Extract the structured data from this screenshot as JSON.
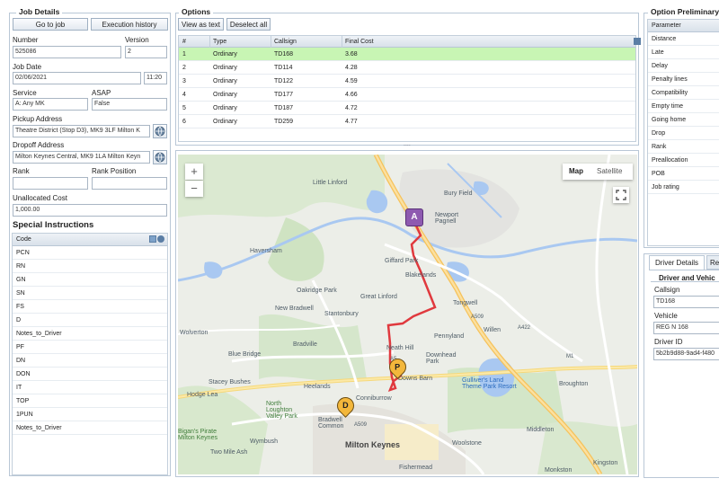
{
  "job_details": {
    "title": "Job Details",
    "go_to_job": "Go to job",
    "execution_history": "Execution history",
    "number_label": "Number",
    "number_value": "525086",
    "version_label": "Version",
    "version_value": "2",
    "job_date_label": "Job Date",
    "job_date_value": "02/06/2021",
    "job_time_value": "11:20",
    "service_label": "Service",
    "service_value": "A: Any MK",
    "asap_label": "ASAP",
    "asap_value": "False",
    "pickup_label": "Pickup Address",
    "pickup_value": "Theatre District (Stop D3), MK9 3LF Milton K",
    "dropoff_label": "Dropoff Address",
    "dropoff_value": "Milton Keynes Central, MK9 1LA Milton Keyn",
    "rank_label": "Rank",
    "rank_value": "",
    "rank_position_label": "Rank Position",
    "rank_position_value": "",
    "unallocated_label": "Unallocated Cost",
    "unallocated_value": "1,000.00",
    "special_title": "Special Instructions",
    "code_header": "Code",
    "codes": [
      "PCN",
      "RN",
      "GN",
      "SN",
      "FS",
      "D",
      "Notes_to_Driver",
      "PF",
      "DN",
      "DON",
      "IT",
      "TOP",
      "1PUN",
      "Notes_to_Driver"
    ]
  },
  "options": {
    "title": "Options",
    "view_as_text": "View as text",
    "deselect_all": "Deselect all",
    "columns": [
      "#",
      "Type",
      "Callsign",
      "Final Cost"
    ],
    "rows": [
      {
        "n": "1",
        "type": "Ordinary",
        "callsign": "TD168",
        "cost": "3.68"
      },
      {
        "n": "2",
        "type": "Ordinary",
        "callsign": "TD114",
        "cost": "4.28"
      },
      {
        "n": "3",
        "type": "Ordinary",
        "callsign": "TD122",
        "cost": "4.59"
      },
      {
        "n": "4",
        "type": "Ordinary",
        "callsign": "TD177",
        "cost": "4.66"
      },
      {
        "n": "5",
        "type": "Ordinary",
        "callsign": "TD187",
        "cost": "4.72"
      },
      {
        "n": "6",
        "type": "Ordinary",
        "callsign": "TD259",
        "cost": "4.77"
      }
    ],
    "splitter": "....",
    "selected_color": "#c8f5b4"
  },
  "map": {
    "zoom_in": "+",
    "zoom_out": "−",
    "map_tab": "Map",
    "satellite_tab": "Satellite",
    "marker_a": "A",
    "marker_p": "P",
    "marker_d": "D",
    "places": {
      "little_linford": "Little Linford",
      "bury_field": "Bury Field",
      "newport_pagnell": "Newport\nPagnell",
      "haversham": "Haversham",
      "giffard_park": "Giffard Park",
      "blakelands": "Blakelands",
      "oakridge_park": "Oakridge Park",
      "great_linford": "Great Linford",
      "new_bradwell": "New Bradwell",
      "stantonbury": "Stantonbury",
      "tongwell": "Tongwell",
      "wolverton": "Wolverton",
      "pennyland": "Pennyland",
      "willen": "Willen",
      "bradville": "Bradville",
      "neath_hill": "Neath Hill",
      "blue_bridge": "Blue Bridge",
      "downhead_park": "Downhead\nPark",
      "stacey_bushes": "Stacey Bushes",
      "heelands": "Heelands",
      "downs_barn": "Downs Barn",
      "gullivers": "Gulliver's Land\nTheme Park Resort",
      "broughton": "Broughton",
      "hodge_lea": "Hodge Lea",
      "conniburrow": "Conniburrow",
      "north_loughton": "North\nLoughton\nValley Park",
      "bradwell_common": "Bradwell\nCommon",
      "bigans": "Bigan's Pirate\nMilton Keynes",
      "wymbush": "Wymbush",
      "milton_keynes": "Milton Keynes",
      "middleton": "Middleton",
      "woolstone": "Woolstone",
      "two_mile_ash": "Two Mile Ash",
      "fishermead": "Fishermead",
      "monkston": "Monkston",
      "kingston": "Kingston",
      "road_a509": "A509",
      "road_a422": "A422",
      "road_a5": "A5",
      "road_a509b": "A509",
      "road_m1": "M1"
    },
    "route_color": "#e0393e"
  },
  "option_prelim": {
    "title": "Option Preliminary",
    "parameter_header": "Parameter",
    "params": [
      "Distance",
      "Late",
      "Delay",
      "Penalty lines",
      "Compatibility",
      "Empty time",
      "Going home",
      "Drop",
      "Rank",
      "Preallocation",
      "POB",
      "Job rating"
    ]
  },
  "driver_details": {
    "tab_driver": "Driver Details",
    "tab_re": "Re",
    "section_title": "Driver and Vehic",
    "callsign_label": "Callsign",
    "callsign_value": "TD168",
    "vehicle_label": "Vehicle",
    "vehicle_value": "REG N 168",
    "driver_id_label": "Driver ID",
    "driver_id_value": "5b2b9d88-9ad4-f480"
  }
}
